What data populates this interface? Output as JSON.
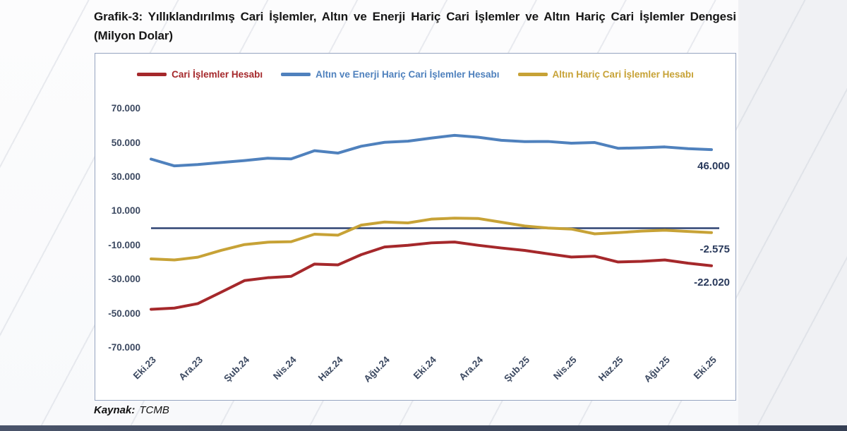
{
  "source": {
    "label": "Kaynak:",
    "value": "TCMB"
  },
  "colors": {
    "axis_text": "#3c4961",
    "end_label_text": "#29395b",
    "box_border": "#96a4c0",
    "zero_line": "#2f4473",
    "bottom_bar": "#3d4655"
  },
  "chart_data": {
    "type": "line",
    "title": "Grafik-3: Yıllıklandırılmış Cari İşlemler, Altın ve Enerji Hariç Cari İşlemler ve Altın Hariç Cari İşlemler Dengesi (Milyon Dolar)",
    "unit_note": "Milyon Dolar",
    "grid": "off",
    "legend_position": "top",
    "ylim": [
      -70000,
      70000
    ],
    "y_tick_labels": [
      "70.000",
      "50.000",
      "30.000",
      "10.000",
      "-10.000",
      "-30.000",
      "-50.000",
      "-70.000"
    ],
    "y_tick_values": [
      70000,
      50000,
      30000,
      10000,
      -10000,
      -30000,
      -50000,
      -70000
    ],
    "x": [
      "Eki.23",
      "Kas.23",
      "Ara.23",
      "Oca.24",
      "Şub.24",
      "Mar.24",
      "Nis.24",
      "May.24",
      "Haz.24",
      "Tem.24",
      "Ağu.24",
      "Eyl.24",
      "Eki.24",
      "Kas.24",
      "Ara.24",
      "Oca.25",
      "Şub.25",
      "Mar.25",
      "Nis.25",
      "May.25",
      "Haz.25",
      "Tem.25",
      "Ağu.25",
      "Eyl.25",
      "Eki.25"
    ],
    "x_tick_labels": [
      "Eki.23",
      "Ara.23",
      "Şub.24",
      "Nis.24",
      "Haz.24",
      "Ağu.24",
      "Eki.24",
      "Ara.24",
      "Şub.25",
      "Nis.25",
      "Haz.25",
      "Ağu.25",
      "Eki.25"
    ],
    "series": [
      {
        "name": "Cari İşlemler Hesabı",
        "color": "#a5282b",
        "end_label": "-22.020",
        "end_value": -22020,
        "values": [
          -47500,
          -46800,
          -44200,
          -37500,
          -30700,
          -29000,
          -28200,
          -21000,
          -21500,
          -15500,
          -11000,
          -10000,
          -8600,
          -8100,
          -10000,
          -11600,
          -13000,
          -15000,
          -16900,
          -16400,
          -19800,
          -19400,
          -18600,
          -20500,
          -22020
        ]
      },
      {
        "name": "Altın ve Enerji Hariç Cari İşlemler Hesabı",
        "color": "#4f81bd",
        "end_label": "46.000",
        "end_value": 46000,
        "values": [
          40500,
          36500,
          37300,
          38500,
          39600,
          41000,
          40600,
          45400,
          44000,
          48000,
          50300,
          51000,
          52800,
          54400,
          53300,
          51500,
          50700,
          50800,
          49800,
          50200,
          46800,
          47100,
          47600,
          46600,
          46000
        ]
      },
      {
        "name": "Altın Hariç Cari İşlemler Hesabı",
        "color": "#c7a236",
        "end_label": "-2.575",
        "end_value": -2575,
        "values": [
          -18000,
          -18600,
          -17000,
          -13000,
          -9600,
          -8200,
          -7900,
          -3500,
          -4100,
          1800,
          3600,
          3100,
          5300,
          5900,
          5700,
          3500,
          1300,
          100,
          -500,
          -3300,
          -2600,
          -1700,
          -1200,
          -1900,
          -2575
        ]
      }
    ]
  }
}
